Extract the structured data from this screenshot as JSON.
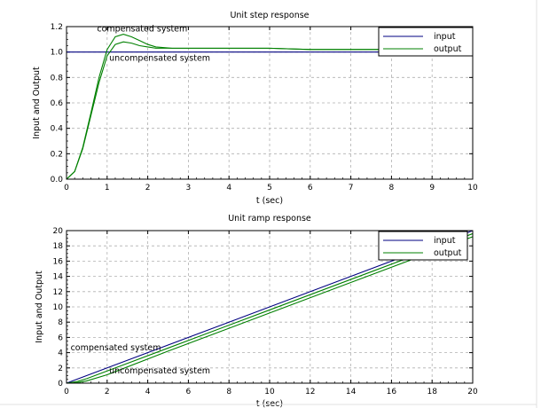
{
  "chart_data": [
    {
      "type": "line",
      "title": "Unit step response",
      "xlabel": "t (sec)",
      "ylabel": "Input and Output",
      "xlim": [
        0,
        10
      ],
      "ylim": [
        0,
        1.2
      ],
      "xticks": [
        0,
        1,
        2,
        3,
        4,
        5,
        6,
        7,
        8,
        9,
        10
      ],
      "yticks": [
        0.0,
        0.2,
        0.4,
        0.6,
        0.8,
        1.0,
        1.2
      ],
      "ytick_labels": [
        "0.0",
        "0.2",
        "0.4",
        "0.6",
        "0.8",
        "1.0",
        "1.2"
      ],
      "grid": true,
      "legend_position": "top-right",
      "legend": [
        {
          "name": "input",
          "color": "#000080"
        },
        {
          "name": "output",
          "color": "#008000"
        }
      ],
      "annotations": [
        {
          "text": "compensated system",
          "x": 0.75,
          "y": 1.16
        },
        {
          "text": "uncompensated system",
          "x": 1.05,
          "y": 0.93
        }
      ],
      "series": [
        {
          "name": "input",
          "color": "#000080",
          "x": [
            0,
            10
          ],
          "y": [
            1.0,
            1.0
          ]
        },
        {
          "name": "output (compensated)",
          "color": "#008000",
          "x": [
            0,
            0.2,
            0.4,
            0.6,
            0.8,
            1.0,
            1.2,
            1.4,
            1.6,
            1.8,
            2.0,
            2.2,
            2.4,
            2.6,
            3.0,
            4.0,
            5.0,
            6.0,
            7.0,
            8.0,
            9.0,
            10.0
          ],
          "y": [
            0,
            0.06,
            0.25,
            0.52,
            0.8,
            1.02,
            1.12,
            1.14,
            1.12,
            1.09,
            1.06,
            1.04,
            1.035,
            1.03,
            1.03,
            1.03,
            1.03,
            1.02,
            1.02,
            1.02,
            1.02,
            1.02
          ]
        },
        {
          "name": "output (uncompensated)",
          "color": "#008000",
          "x": [
            0,
            0.2,
            0.4,
            0.6,
            0.8,
            1.0,
            1.2,
            1.4,
            1.6,
            1.8,
            2.0,
            2.2,
            2.4,
            2.6,
            3.0,
            4.0,
            5.0,
            6.0,
            7.0,
            8.0,
            9.0,
            10.0
          ],
          "y": [
            0,
            0.06,
            0.24,
            0.5,
            0.76,
            0.97,
            1.06,
            1.08,
            1.07,
            1.05,
            1.04,
            1.03,
            1.03,
            1.03,
            1.03,
            1.03,
            1.03,
            1.02,
            1.02,
            1.02,
            1.02,
            1.02
          ]
        }
      ]
    },
    {
      "type": "line",
      "title": "Unit ramp response",
      "xlabel": "t (sec)",
      "ylabel": "Input and Output",
      "xlim": [
        0,
        20
      ],
      "ylim": [
        0,
        20
      ],
      "xticks": [
        0,
        2,
        4,
        6,
        8,
        10,
        12,
        14,
        16,
        18,
        20
      ],
      "yticks": [
        0,
        2,
        4,
        6,
        8,
        10,
        12,
        14,
        16,
        18,
        20
      ],
      "ytick_labels": [
        "0",
        "2",
        "4",
        "6",
        "8",
        "10",
        "12",
        "14",
        "16",
        "18",
        "20"
      ],
      "grid": true,
      "legend_position": "top-right",
      "legend": [
        {
          "name": "input",
          "color": "#000080"
        },
        {
          "name": "output",
          "color": "#008000"
        }
      ],
      "annotations": [
        {
          "text": "compensated system",
          "x": 0.2,
          "y": 4.3
        },
        {
          "text": "uncompensated system",
          "x": 2.1,
          "y": 1.3
        }
      ],
      "series": [
        {
          "name": "input",
          "color": "#000080",
          "x": [
            0,
            20
          ],
          "y": [
            0,
            20
          ]
        },
        {
          "name": "output (compensated)",
          "color": "#008000",
          "x": [
            0,
            0.5,
            1,
            2,
            5,
            10,
            15,
            20
          ],
          "y": [
            0,
            0.2,
            0.6,
            1.6,
            4.6,
            9.6,
            14.6,
            19.6
          ]
        },
        {
          "name": "output (uncompensated)",
          "color": "#008000",
          "x": [
            0,
            0.5,
            1,
            2,
            5,
            10,
            15,
            20
          ],
          "y": [
            0,
            0.05,
            0.3,
            1.1,
            4.2,
            9.2,
            14.2,
            19.2
          ]
        }
      ]
    }
  ]
}
